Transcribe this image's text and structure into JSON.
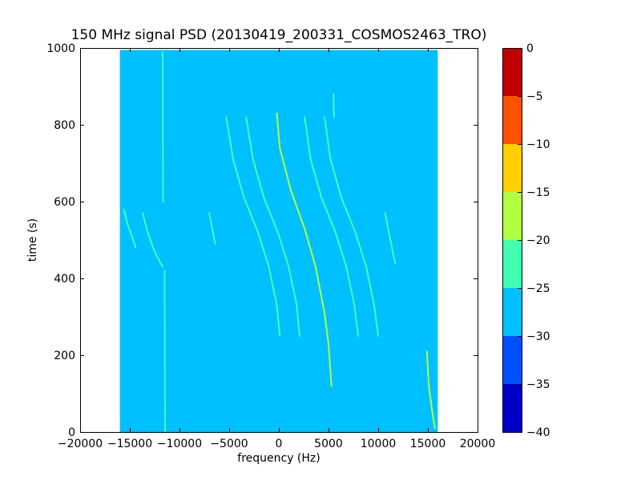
{
  "chart_data": {
    "type": "heatmap",
    "title": "150 MHz signal PSD (20130419_200331_COSMOS2463_TRO)",
    "xlabel": "frequency (Hz)",
    "ylabel": "time (s)",
    "xlim": [
      -20000,
      20000
    ],
    "ylim": [
      0,
      1000
    ],
    "x_ticks": [
      -20000,
      -15000,
      -10000,
      -5000,
      0,
      5000,
      10000,
      15000,
      20000
    ],
    "y_ticks": [
      0,
      200,
      400,
      600,
      800,
      1000
    ],
    "data_extent": {
      "x": [
        -16000,
        16000
      ],
      "y": [
        0,
        995
      ]
    },
    "background_level": -27.5,
    "colorbar": {
      "levels": [
        -40,
        -35,
        -30,
        -25,
        -20,
        -15,
        -10,
        -5,
        0
      ],
      "colors": [
        "#0000c8",
        "#0050ff",
        "#00c0ff",
        "#40ffb0",
        "#b0ff40",
        "#ffd000",
        "#ff5000",
        "#c00000"
      ]
    },
    "series": [
      {
        "level": -17,
        "points": [
          [
            -200,
            830
          ],
          [
            100,
            740
          ],
          [
            1200,
            630
          ],
          [
            2600,
            530
          ],
          [
            3700,
            430
          ],
          [
            4600,
            310
          ],
          [
            5000,
            230
          ],
          [
            5300,
            120
          ]
        ]
      },
      {
        "level": -22,
        "points": [
          [
            -5300,
            820
          ],
          [
            -4600,
            710
          ],
          [
            -3500,
            610
          ],
          [
            -2100,
            520
          ],
          [
            -1000,
            430
          ],
          [
            -200,
            330
          ],
          [
            100,
            250
          ]
        ]
      },
      {
        "level": -22,
        "points": [
          [
            -3300,
            820
          ],
          [
            -2600,
            710
          ],
          [
            -1500,
            610
          ],
          [
            -100,
            520
          ],
          [
            1000,
            430
          ],
          [
            1800,
            330
          ],
          [
            2100,
            250
          ]
        ]
      },
      {
        "level": -22,
        "points": [
          [
            2600,
            820
          ],
          [
            3200,
            710
          ],
          [
            4300,
            610
          ],
          [
            5700,
            520
          ],
          [
            6800,
            430
          ],
          [
            7600,
            330
          ],
          [
            8000,
            250
          ]
        ]
      },
      {
        "level": -22,
        "points": [
          [
            4600,
            820
          ],
          [
            5200,
            710
          ],
          [
            6300,
            610
          ],
          [
            7700,
            520
          ],
          [
            8800,
            430
          ],
          [
            9600,
            330
          ],
          [
            10000,
            250
          ]
        ]
      },
      {
        "level": -24,
        "points": [
          [
            -15600,
            580
          ],
          [
            -15200,
            540
          ],
          [
            -14800,
            510
          ],
          [
            -14400,
            480
          ]
        ]
      },
      {
        "level": -24,
        "points": [
          [
            -13700,
            570
          ],
          [
            -13200,
            520
          ],
          [
            -12500,
            470
          ],
          [
            -11700,
            430
          ]
        ]
      },
      {
        "level": -24,
        "points": [
          [
            -7000,
            570
          ],
          [
            -6700,
            530
          ],
          [
            -6400,
            490
          ]
        ]
      },
      {
        "level": -24,
        "points": [
          [
            10700,
            570
          ],
          [
            11000,
            530
          ],
          [
            11300,
            490
          ],
          [
            11700,
            440
          ]
        ]
      },
      {
        "level": -20,
        "points": [
          [
            14900,
            210
          ],
          [
            15100,
            120
          ],
          [
            15400,
            60
          ],
          [
            15700,
            10
          ]
        ]
      },
      {
        "level": -22,
        "points": [
          [
            5500,
            880
          ],
          [
            5550,
            820
          ]
        ]
      },
      {
        "level": -24,
        "points": [
          [
            -11700,
            990
          ],
          [
            -11650,
            600
          ]
        ]
      },
      {
        "level": -24,
        "points": [
          [
            -11500,
            420
          ],
          [
            -11450,
            0
          ]
        ]
      }
    ]
  }
}
